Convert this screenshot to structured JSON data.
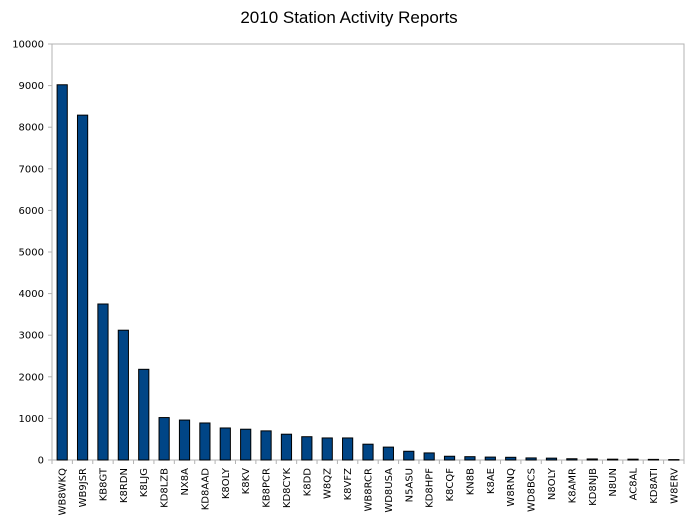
{
  "chart_data": {
    "type": "bar",
    "title": "2010 Station Activity Reports",
    "xlabel": "",
    "ylabel": "",
    "ylim": [
      0,
      10000
    ],
    "yticks": [
      0,
      1000,
      2000,
      3000,
      4000,
      5000,
      6000,
      7000,
      8000,
      9000,
      10000
    ],
    "grid": false,
    "legend": "none",
    "bar_color": "#004586",
    "categories": [
      "WB8WKQ",
      "WB9JSR",
      "KB8GT",
      "K8RDN",
      "K8LJG",
      "KD8LZB",
      "NX8A",
      "KD8AAD",
      "K8OLY",
      "K8KV",
      "KB8PCR",
      "KD8CYK",
      "K8DD",
      "W8QZ",
      "K8VFZ",
      "WB8RCR",
      "WD8USA",
      "N5ASU",
      "KD8HPF",
      "K8CQF",
      "KN8B",
      "K8AE",
      "W8RNQ",
      "WD8BCS",
      "N8OLY",
      "K8AMR",
      "KD8NJB",
      "N8UN",
      "AC8AL",
      "KD8ATI",
      "W8ERV"
    ],
    "values": [
      9020,
      8290,
      3750,
      3120,
      2180,
      1020,
      960,
      890,
      770,
      740,
      700,
      620,
      560,
      530,
      530,
      380,
      310,
      210,
      170,
      90,
      80,
      70,
      65,
      50,
      45,
      30,
      25,
      20,
      20,
      15,
      10
    ]
  }
}
